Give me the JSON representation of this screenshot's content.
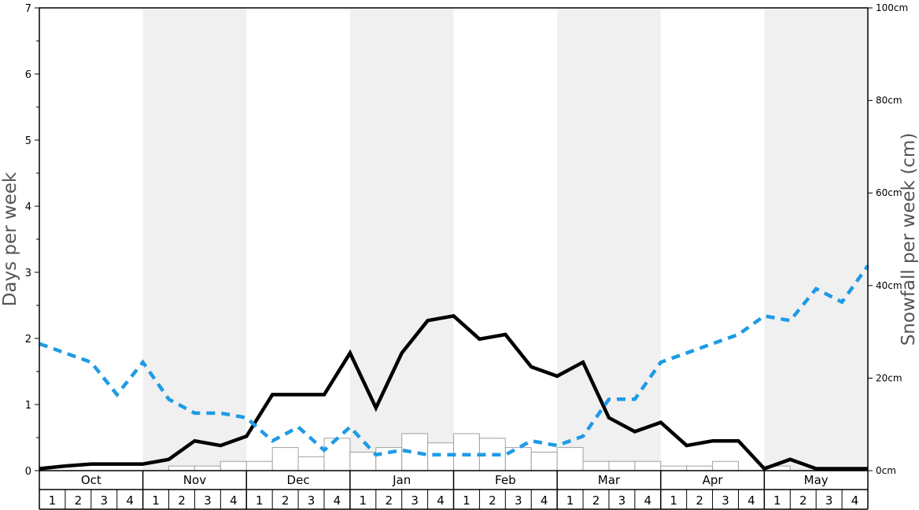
{
  "chart_data": {
    "type": "bar",
    "left_axis": {
      "title": "Days per week",
      "ylim": [
        0,
        7
      ],
      "ticks": [
        "0",
        "1",
        "2",
        "3",
        "4",
        "5",
        "6",
        "7"
      ]
    },
    "right_axis": {
      "title": "Snowfall per week (cm)",
      "ylim": [
        0,
        100
      ],
      "ticks": [
        "0cm",
        "20cm",
        "40cm",
        "60cm",
        "80cm",
        "100cm"
      ]
    },
    "months": [
      "Oct",
      "Nov",
      "Dec",
      "Jan",
      "Feb",
      "Mar",
      "Apr",
      "May"
    ],
    "week_labels": [
      "1",
      "2",
      "3",
      "4"
    ],
    "shaded_months": [
      "Nov",
      "Jan",
      "Mar",
      "May"
    ],
    "colors": {
      "shade": "#f0f0f0",
      "bar_fill": "#ffffff",
      "bar_stroke": "#a0a0a0",
      "solid_line": "#000000",
      "dashed_line": "#1e9be6"
    },
    "series": [
      {
        "kind": "bars",
        "axis": "right",
        "values": [
          0,
          0,
          0,
          0,
          0,
          1,
          1,
          2,
          2,
          5,
          3,
          7,
          4,
          5,
          8,
          6,
          8,
          7,
          5,
          4,
          5,
          2,
          2,
          2,
          1,
          1,
          2,
          0,
          1,
          0,
          0,
          0
        ]
      },
      {
        "kind": "line",
        "axis": "left",
        "style": "solid",
        "values": [
          0.03,
          0.07,
          0.1,
          0.1,
          0.1,
          0.17,
          0.45,
          0.38,
          0.52,
          1.15,
          1.15,
          1.15,
          1.78,
          0.95,
          1.78,
          2.27,
          2.34,
          1.99,
          2.06,
          1.57,
          1.43,
          1.64,
          0.8,
          0.59,
          0.73,
          0.38,
          0.45,
          0.45,
          0.03,
          0.17,
          0.03,
          0.03,
          0.03
        ]
      },
      {
        "kind": "line",
        "axis": "left",
        "style": "dashed",
        "values": [
          1.92,
          1.78,
          1.64,
          1.15,
          1.64,
          1.08,
          0.87,
          0.87,
          0.8,
          0.45,
          0.66,
          0.31,
          0.66,
          0.24,
          0.31,
          0.24,
          0.24,
          0.24,
          0.24,
          0.45,
          0.38,
          0.52,
          1.08,
          1.08,
          1.64,
          1.78,
          1.92,
          2.06,
          2.34,
          2.27,
          2.75,
          2.55,
          3.1
        ]
      }
    ]
  }
}
